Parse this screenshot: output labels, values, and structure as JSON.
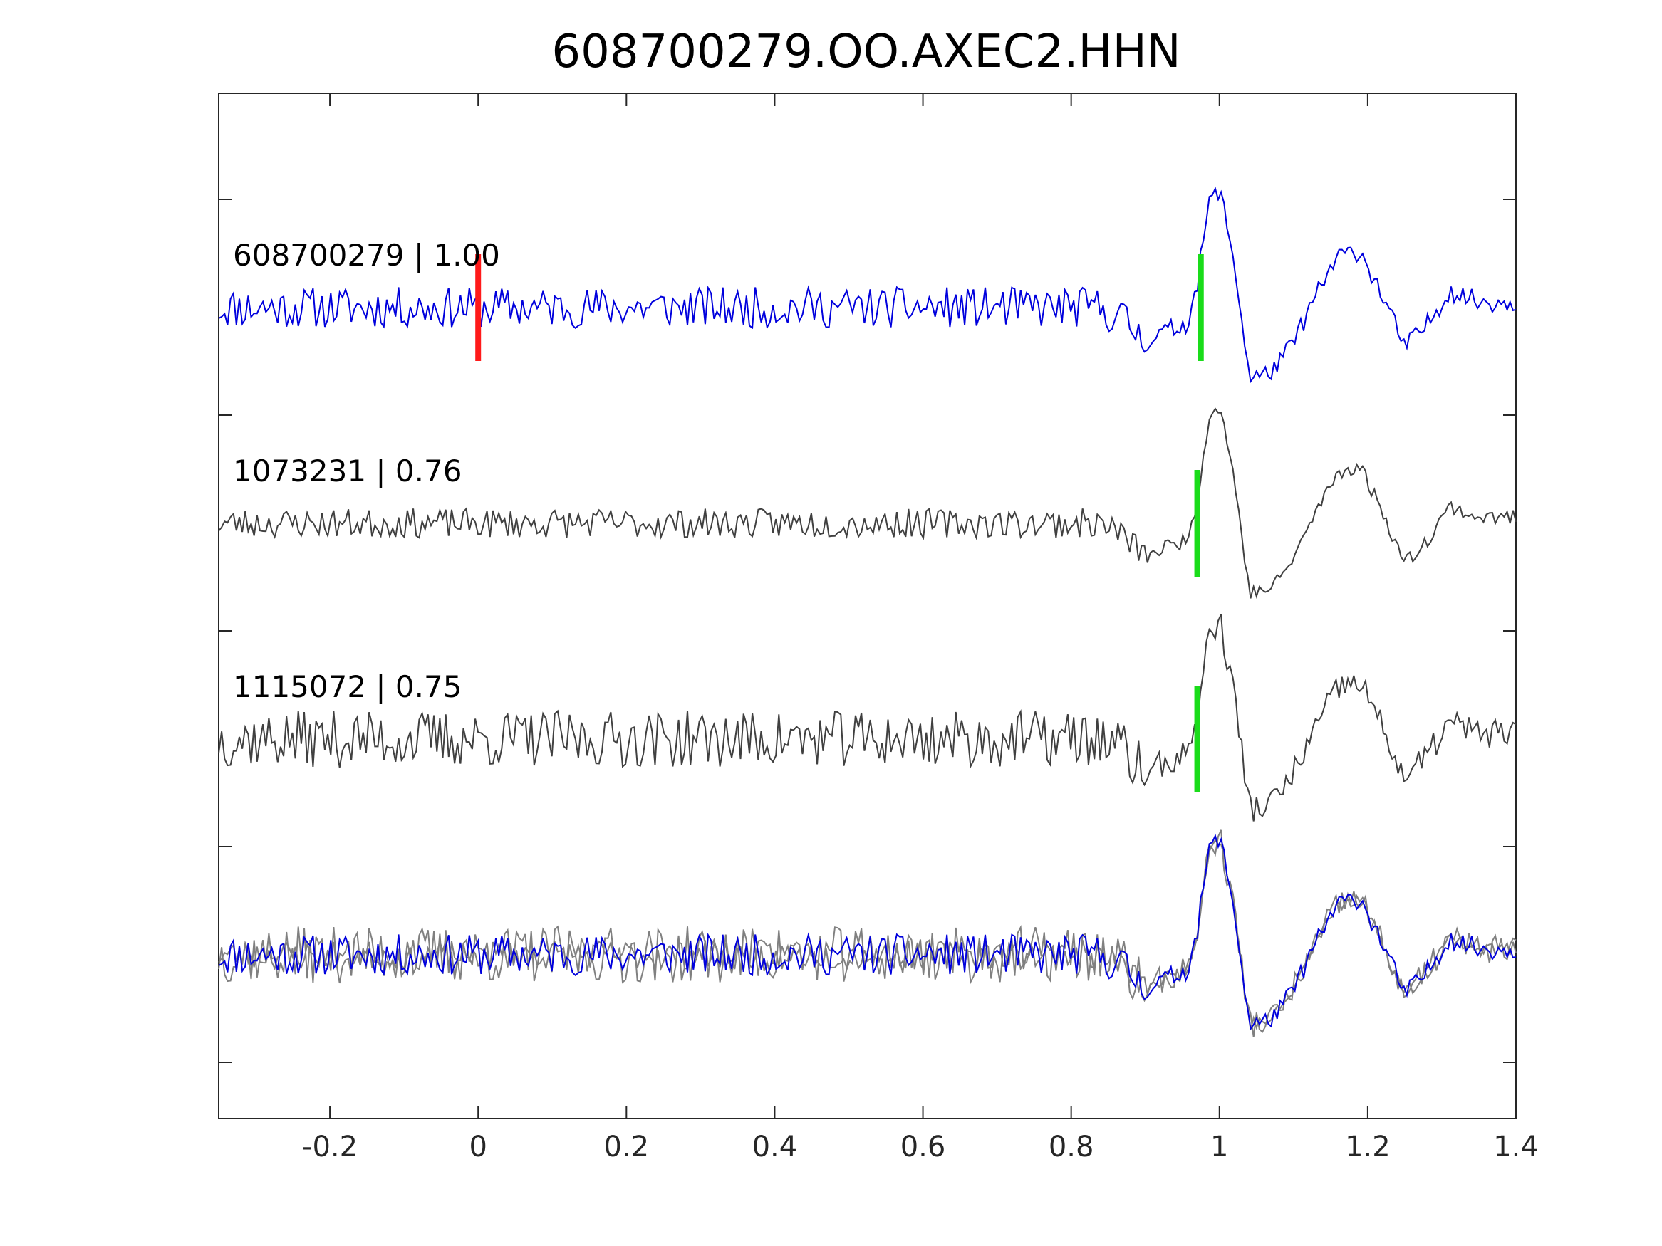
{
  "chart_data": {
    "type": "line",
    "title": "608700279.OO.AXEC2.HHN",
    "xlabel": "",
    "ylabel": "",
    "xlim": [
      -0.35,
      1.4
    ],
    "x_ticks": [
      {
        "value": -0.2,
        "label": "-0.2"
      },
      {
        "value": 0,
        "label": "0"
      },
      {
        "value": 0.2,
        "label": "0.2"
      },
      {
        "value": 0.4,
        "label": "0.4"
      },
      {
        "value": 0.6,
        "label": "0.6"
      },
      {
        "value": 0.8,
        "label": "0.8"
      },
      {
        "value": 1,
        "label": "1"
      },
      {
        "value": 1.2,
        "label": "1.2"
      },
      {
        "value": 1.4,
        "label": "1.4"
      }
    ],
    "grid": false,
    "legend": "none",
    "colors": {
      "master": "#0000dd",
      "neighbor": "#404040",
      "overlay_neighbor": "#808080",
      "origin_pick": "#ff1a1a",
      "phase_pick": "#1adc1a"
    },
    "traces": [
      {
        "label": "608700279 | 1.00",
        "color": "master",
        "noise_amp": 0.18,
        "seed": 11,
        "origin_pick": 0.0,
        "phase_pick": 0.975
      },
      {
        "label": "1073231 | 0.76",
        "color": "neighbor",
        "noise_amp": 0.13,
        "seed": 23,
        "phase_pick": 0.97
      },
      {
        "label": "1115072 | 0.75",
        "color": "neighbor",
        "noise_amp": 0.25,
        "seed": 37,
        "phase_pick": 0.97
      }
    ],
    "waveform_shape": {
      "x": [
        0.84,
        0.87,
        0.9,
        0.93,
        0.955,
        0.97,
        0.985,
        1.0,
        1.02,
        1.04,
        1.06,
        1.08,
        1.1,
        1.13,
        1.16,
        1.19,
        1.22,
        1.25,
        1.28,
        1.31,
        1.35,
        1.4
      ],
      "y": [
        0,
        -0.1,
        -0.3,
        -0.2,
        -0.15,
        0.2,
        0.9,
        1.05,
        0.4,
        -0.6,
        -0.6,
        -0.5,
        -0.3,
        0.1,
        0.45,
        0.5,
        0.1,
        -0.35,
        -0.15,
        0.15,
        0.05,
        0.05
      ]
    }
  }
}
